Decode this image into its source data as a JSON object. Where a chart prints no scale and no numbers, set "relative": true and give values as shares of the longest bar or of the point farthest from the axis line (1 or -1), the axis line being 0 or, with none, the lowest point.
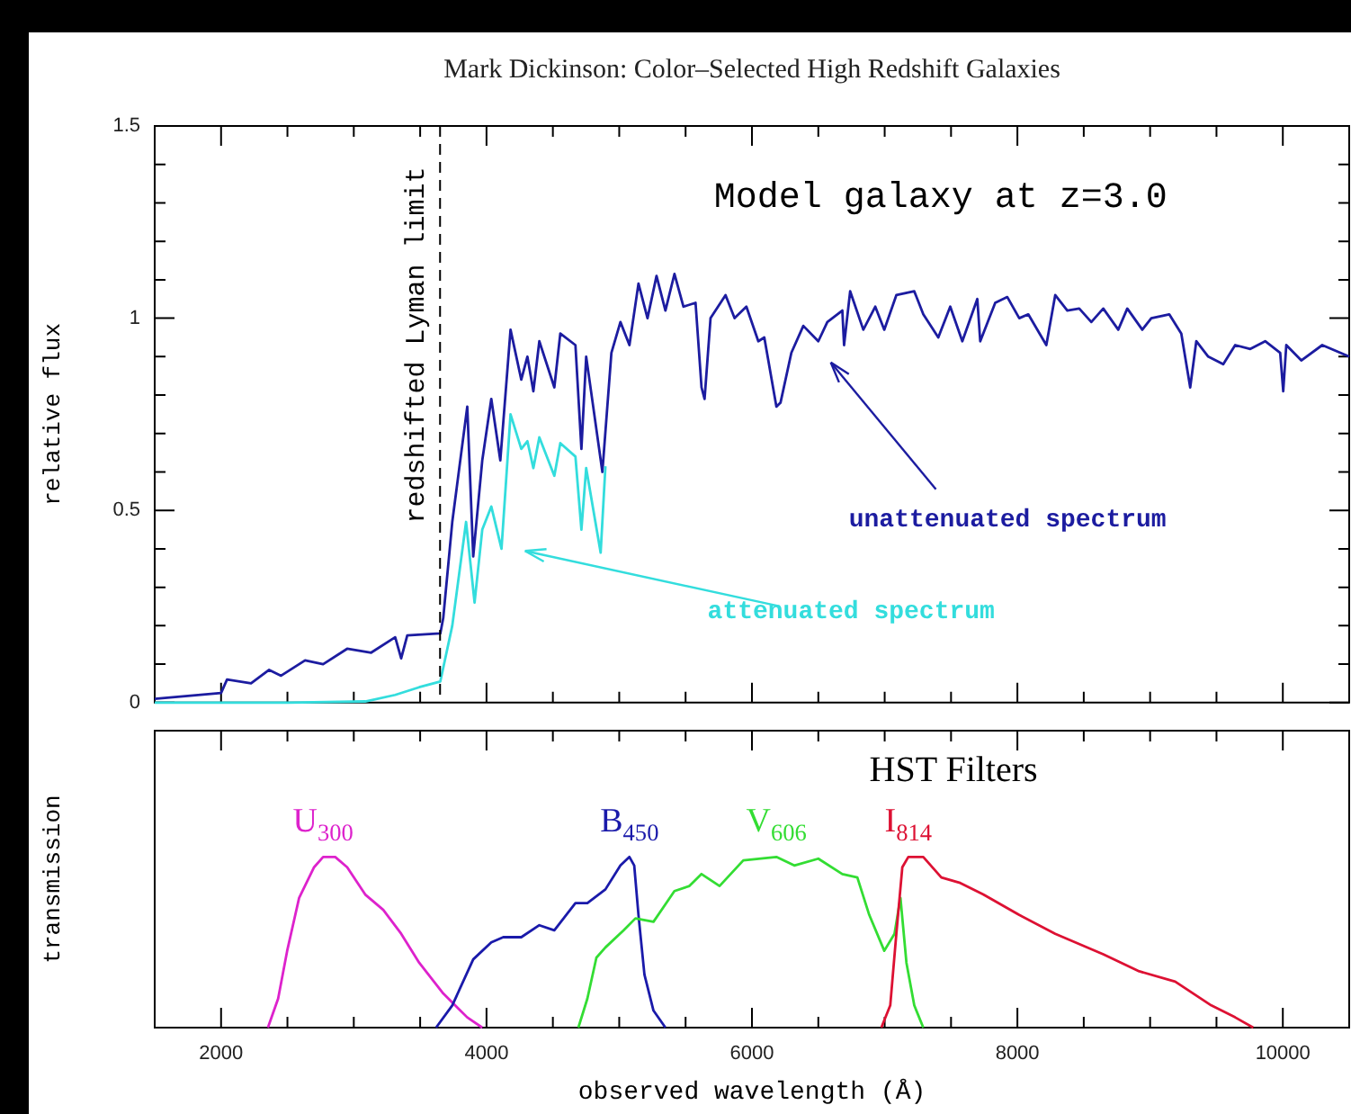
{
  "chart_data": [
    {
      "type": "line",
      "title": "Mark Dickinson: Color–Selected High Redshift Galaxies",
      "ylabel": "relative flux",
      "annotations": [
        "Model galaxy at z=3.0"
      ],
      "xlim": [
        1500,
        10500
      ],
      "xticks": [
        2000,
        {
          "value": 2500,
          "label": null
        },
        {
          "value": 3000,
          "label": null
        },
        {
          "value": 3500,
          "label": null
        },
        4000,
        {
          "value": 4500,
          "label": null
        },
        {
          "value": 5000,
          "label": null
        },
        {
          "value": 5500,
          "label": null
        },
        6000,
        {
          "value": 6500,
          "label": null
        },
        {
          "value": 7000,
          "label": null
        },
        {
          "value": 7500,
          "label": null
        },
        8000,
        {
          "value": 8500,
          "label": null
        },
        {
          "value": 9000,
          "label": null
        },
        {
          "value": 9500,
          "label": null
        },
        10000
      ],
      "ylim": [
        0,
        1.5
      ],
      "yticks": [
        0,
        {
          "value": 0.1,
          "label": null
        },
        {
          "value": 0.2,
          "label": null
        },
        {
          "value": 0.3,
          "label": null
        },
        {
          "value": 0.4,
          "label": null
        },
        0.5,
        {
          "value": 0.6,
          "label": null
        },
        {
          "value": 0.7,
          "label": null
        },
        {
          "value": 0.8,
          "label": null
        },
        {
          "value": 0.9,
          "label": null
        },
        1,
        {
          "value": 1.1,
          "label": null
        },
        {
          "value": 1.2,
          "label": null
        },
        {
          "value": 1.3,
          "label": null
        },
        {
          "value": 1.4,
          "label": null
        },
        1.5
      ],
      "tick_labels": "y",
      "ref_lines": [
        {
          "axis": "x",
          "value": 3650,
          "label": "redshifted Lyman limit",
          "color": "#000000",
          "line_style": "dashed"
        }
      ],
      "series": [
        {
          "name": "unattenuated spectrum",
          "color": "#1c1ca0",
          "x": [
            1500,
            2000,
            2045,
            2226,
            2362,
            2452,
            2633,
            2769,
            2950,
            3131,
            3312,
            3357,
            3403,
            3652,
            3674,
            3742,
            3855,
            3900,
            3968,
            4036,
            4104,
            4181,
            4262,
            4308,
            4353,
            4398,
            4511,
            4556,
            4670,
            4715,
            4751,
            4873,
            4941,
            5009,
            5077,
            5145,
            5213,
            5281,
            5348,
            5416,
            5484,
            5575,
            5620,
            5643,
            5688,
            5801,
            5869,
            5958,
            6048,
            6093,
            6184,
            6215,
            6297,
            6387,
            6500,
            6568,
            6681,
            6694,
            6740,
            6839,
            6929,
            6997,
            7088,
            7223,
            7291,
            7404,
            7494,
            7585,
            7698,
            7720,
            7833,
            7924,
            8014,
            8082,
            8218,
            8285,
            8376,
            8466,
            8557,
            8647,
            8760,
            8828,
            8941,
            9009,
            9144,
            9235,
            9302,
            9348,
            9438,
            9551,
            9641,
            9755,
            9867,
            9980,
            10003,
            10026,
            10139,
            10297,
            10500
          ],
          "values": [
            0.01,
            0.025,
            0.06,
            0.05,
            0.085,
            0.07,
            0.11,
            0.1,
            0.14,
            0.13,
            0.17,
            0.115,
            0.175,
            0.18,
            0.22,
            0.47,
            0.77,
            0.38,
            0.63,
            0.79,
            0.63,
            0.97,
            0.84,
            0.9,
            0.81,
            0.94,
            0.82,
            0.96,
            0.93,
            0.66,
            0.9,
            0.6,
            0.91,
            0.99,
            0.93,
            1.09,
            1.0,
            1.11,
            1.02,
            1.115,
            1.03,
            1.04,
            0.82,
            0.79,
            1.0,
            1.06,
            1.0,
            1.03,
            0.94,
            0.95,
            0.77,
            0.78,
            0.91,
            0.98,
            0.94,
            0.99,
            1.02,
            0.93,
            1.07,
            0.97,
            1.03,
            0.97,
            1.06,
            1.07,
            1.01,
            0.95,
            1.03,
            0.94,
            1.05,
            0.94,
            1.04,
            1.055,
            1.0,
            1.01,
            0.93,
            1.06,
            1.02,
            1.025,
            0.99,
            1.025,
            0.97,
            1.025,
            0.97,
            1.0,
            1.01,
            0.96,
            0.82,
            0.94,
            0.9,
            0.88,
            0.93,
            0.92,
            0.94,
            0.91,
            0.81,
            0.93,
            0.89,
            0.93,
            0.9
          ]
        },
        {
          "name": "attenuated spectrum",
          "color": "#33dddd",
          "x": [
            1500,
            2000,
            2500,
            3086,
            3312,
            3493,
            3652,
            3742,
            3846,
            3910,
            3968,
            4036,
            4113,
            4181,
            4262,
            4308,
            4353,
            4398,
            4511,
            4556,
            4670,
            4715,
            4751,
            4860,
            4896
          ],
          "values": [
            0,
            0,
            0,
            0.003,
            0.02,
            0.04,
            0.055,
            0.2,
            0.47,
            0.26,
            0.45,
            0.51,
            0.4,
            0.75,
            0.66,
            0.68,
            0.61,
            0.69,
            0.59,
            0.675,
            0.64,
            0.45,
            0.61,
            0.39,
            0.615
          ]
        }
      ]
    },
    {
      "type": "line",
      "relative": true,
      "xlabel": "observed wavelength (Å)",
      "ylabel": "transmission",
      "annotations": [
        "HST Filters"
      ],
      "xlim": [
        1500,
        10500
      ],
      "xticks": [
        2000,
        {
          "value": 2500,
          "label": null
        },
        {
          "value": 3000,
          "label": null
        },
        {
          "value": 3500,
          "label": null
        },
        4000,
        {
          "value": 4500,
          "label": null
        },
        {
          "value": 5000,
          "label": null
        },
        {
          "value": 5500,
          "label": null
        },
        6000,
        {
          "value": 6500,
          "label": null
        },
        {
          "value": 7000,
          "label": null
        },
        {
          "value": 7500,
          "label": null
        },
        8000,
        {
          "value": 8500,
          "label": null
        },
        {
          "value": 9000,
          "label": null
        },
        {
          "value": 9500,
          "label": null
        },
        10000
      ],
      "tick_labels": "x",
      "series": [
        {
          "name": "U$_{300}$",
          "color": "#dd22cc",
          "x": [
            2353,
            2430,
            2498,
            2588,
            2701,
            2769,
            2860,
            2950,
            3086,
            3222,
            3357,
            3493,
            3674,
            3855,
            3968
          ],
          "values": [
            0,
            0.17,
            0.45,
            0.76,
            0.94,
            1,
            1,
            0.94,
            0.78,
            0.69,
            0.55,
            0.38,
            0.2,
            0.06,
            0
          ]
        },
        {
          "name": "B$_{450}$",
          "color": "#1a1aaa",
          "x": [
            3620,
            3742,
            3900,
            4036,
            4126,
            4262,
            4398,
            4511,
            4670,
            4760,
            4896,
            5009,
            5077,
            5113,
            5145,
            5190,
            5258,
            5348
          ],
          "values": [
            0,
            0.13,
            0.4,
            0.5,
            0.53,
            0.53,
            0.6,
            0.57,
            0.73,
            0.73,
            0.81,
            0.95,
            1,
            0.95,
            0.66,
            0.31,
            0.1,
            0
          ]
        },
        {
          "name": "V$_{606}$",
          "color": "#33dd33",
          "x": [
            4692,
            4760,
            4828,
            4896,
            5032,
            5122,
            5258,
            5416,
            5529,
            5620,
            5756,
            5935,
            6184,
            6319,
            6500,
            6681,
            6794,
            6884,
            6997,
            7074,
            7119,
            7164,
            7223,
            7291
          ],
          "values": [
            0,
            0.17,
            0.41,
            0.47,
            0.57,
            0.64,
            0.62,
            0.8,
            0.83,
            0.9,
            0.83,
            0.98,
            1,
            0.95,
            0.99,
            0.9,
            0.88,
            0.66,
            0.45,
            0.55,
            0.76,
            0.38,
            0.13,
            0
          ]
        },
        {
          "name": "I$_{814}$",
          "color": "#dd1133",
          "x": [
            6975,
            7042,
            7088,
            7133,
            7178,
            7291,
            7427,
            7562,
            7743,
            8014,
            8285,
            8647,
            8918,
            9189,
            9461,
            9641,
            9777
          ],
          "values": [
            0,
            0.13,
            0.55,
            0.94,
            1,
            1,
            0.88,
            0.85,
            0.78,
            0.66,
            0.55,
            0.43,
            0.33,
            0.27,
            0.13,
            0.06,
            0
          ]
        }
      ]
    }
  ]
}
